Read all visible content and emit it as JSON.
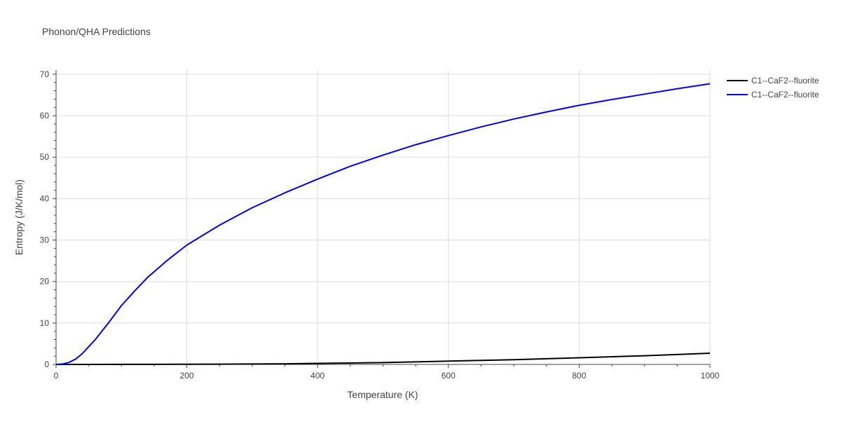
{
  "chart_data": {
    "type": "line",
    "title": "Phonon/QHA Predictions",
    "xlabel": "Temperature (K)",
    "ylabel": "Entropy (J/K/mol)",
    "xlim": [
      0,
      1000
    ],
    "ylim": [
      0,
      71
    ],
    "x_ticks": [
      0,
      200,
      400,
      600,
      800,
      1000
    ],
    "y_ticks": [
      0,
      10,
      20,
      30,
      40,
      50,
      60,
      70
    ],
    "grid": true,
    "legend_position": "top-right",
    "series": [
      {
        "name": "C1--CaF2--fluorite",
        "color": "#000000",
        "x": [
          0,
          10,
          50,
          100,
          150,
          200,
          250,
          300,
          350,
          400,
          500,
          600,
          700,
          800,
          900,
          1000
        ],
        "y": [
          0,
          0,
          0.01,
          0.02,
          0.03,
          0.05,
          0.07,
          0.1,
          0.15,
          0.25,
          0.45,
          0.8,
          1.15,
          1.6,
          2.1,
          2.7
        ]
      },
      {
        "name": "C1--CaF2--fluorite",
        "color": "#0000ee",
        "x": [
          0,
          10,
          20,
          30,
          40,
          50,
          60,
          80,
          100,
          120,
          140,
          170,
          200,
          250,
          300,
          350,
          400,
          450,
          500,
          550,
          600,
          650,
          700,
          750,
          800,
          850,
          900,
          950,
          1000
        ],
        "y": [
          0,
          0.1,
          0.5,
          1.3,
          2.6,
          4.3,
          6.0,
          10.0,
          14.2,
          17.7,
          21.0,
          25.1,
          28.8,
          33.6,
          37.8,
          41.4,
          44.7,
          47.8,
          50.5,
          53.0,
          55.2,
          57.3,
          59.2,
          60.9,
          62.5,
          63.9,
          65.2,
          66.5,
          67.7
        ]
      }
    ]
  }
}
